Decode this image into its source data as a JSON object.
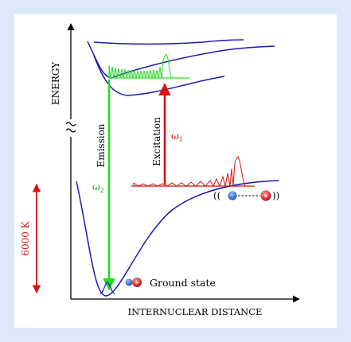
{
  "axes": {
    "y_label": "ENERGY",
    "x_label": "INTERNUCLEAR DISTANCE"
  },
  "arrows": {
    "emission_label": "Emission",
    "excitation_label": "Excitation",
    "omega1_symbol": "ω",
    "omega1_sub": "1",
    "omega2_symbol": "ω",
    "omega2_sub": "2"
  },
  "temperature": {
    "label": "6000 K"
  },
  "ground_state": {
    "label": "Ground state"
  },
  "molecule_stretched": {
    "open_brackets": "((",
    "close_brackets": "))"
  },
  "colors": {
    "background": "#dde9fb",
    "axis": "#000000",
    "curve": "#1a1ab4",
    "emission": "#22dd22",
    "excitation": "#dd1111",
    "atom_blue": "#2a62c8",
    "atom_red": "#d41818"
  },
  "icons": {
    "axis_break": "axis-break-icon",
    "molecule": "diatomic-molecule-icon"
  }
}
